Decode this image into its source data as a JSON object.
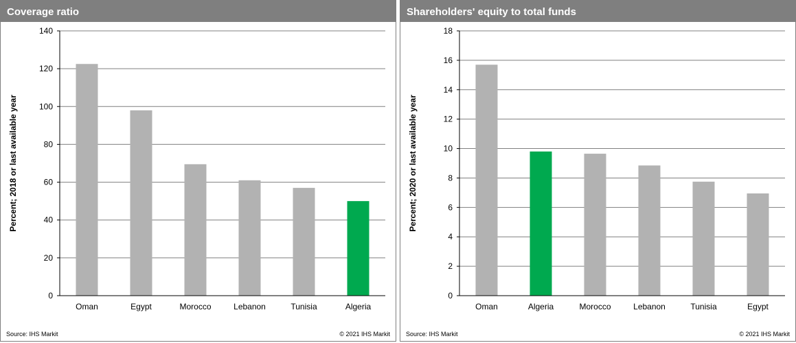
{
  "colors": {
    "header_bg": "#7f7f7f",
    "bar_default": "#b2b2b2",
    "bar_highlight": "#00a94f",
    "grid": "#7f7f7f"
  },
  "footer": {
    "source": "Source:  IHS Markit",
    "copyright": "© 2021  IHS Markit"
  },
  "chart_data": [
    {
      "type": "bar",
      "title": "Coverage ratio",
      "ylabel": "Percent; 2018 or last available year",
      "xlabel": "",
      "categories": [
        "Oman",
        "Egypt",
        "Morocco",
        "Lebanon",
        "Tunisia",
        "Algeria"
      ],
      "values": [
        122.5,
        98,
        69.5,
        61,
        57,
        50
      ],
      "highlight": "Algeria",
      "ylim": [
        0,
        140
      ],
      "yticks": [
        0,
        20,
        40,
        60,
        80,
        100,
        120,
        140
      ],
      "grid": true
    },
    {
      "type": "bar",
      "title": "Shareholders' equity to total funds",
      "ylabel": "Percent; 2020 or last available year",
      "xlabel": "",
      "categories": [
        "Oman",
        "Algeria",
        "Morocco",
        "Lebanon",
        "Tunisia",
        "Egypt"
      ],
      "values": [
        15.7,
        9.8,
        9.65,
        8.85,
        7.75,
        6.95
      ],
      "highlight": "Algeria",
      "ylim": [
        0,
        18
      ],
      "yticks": [
        0,
        2,
        4,
        6,
        8,
        10,
        12,
        14,
        16,
        18
      ],
      "grid": true
    }
  ]
}
